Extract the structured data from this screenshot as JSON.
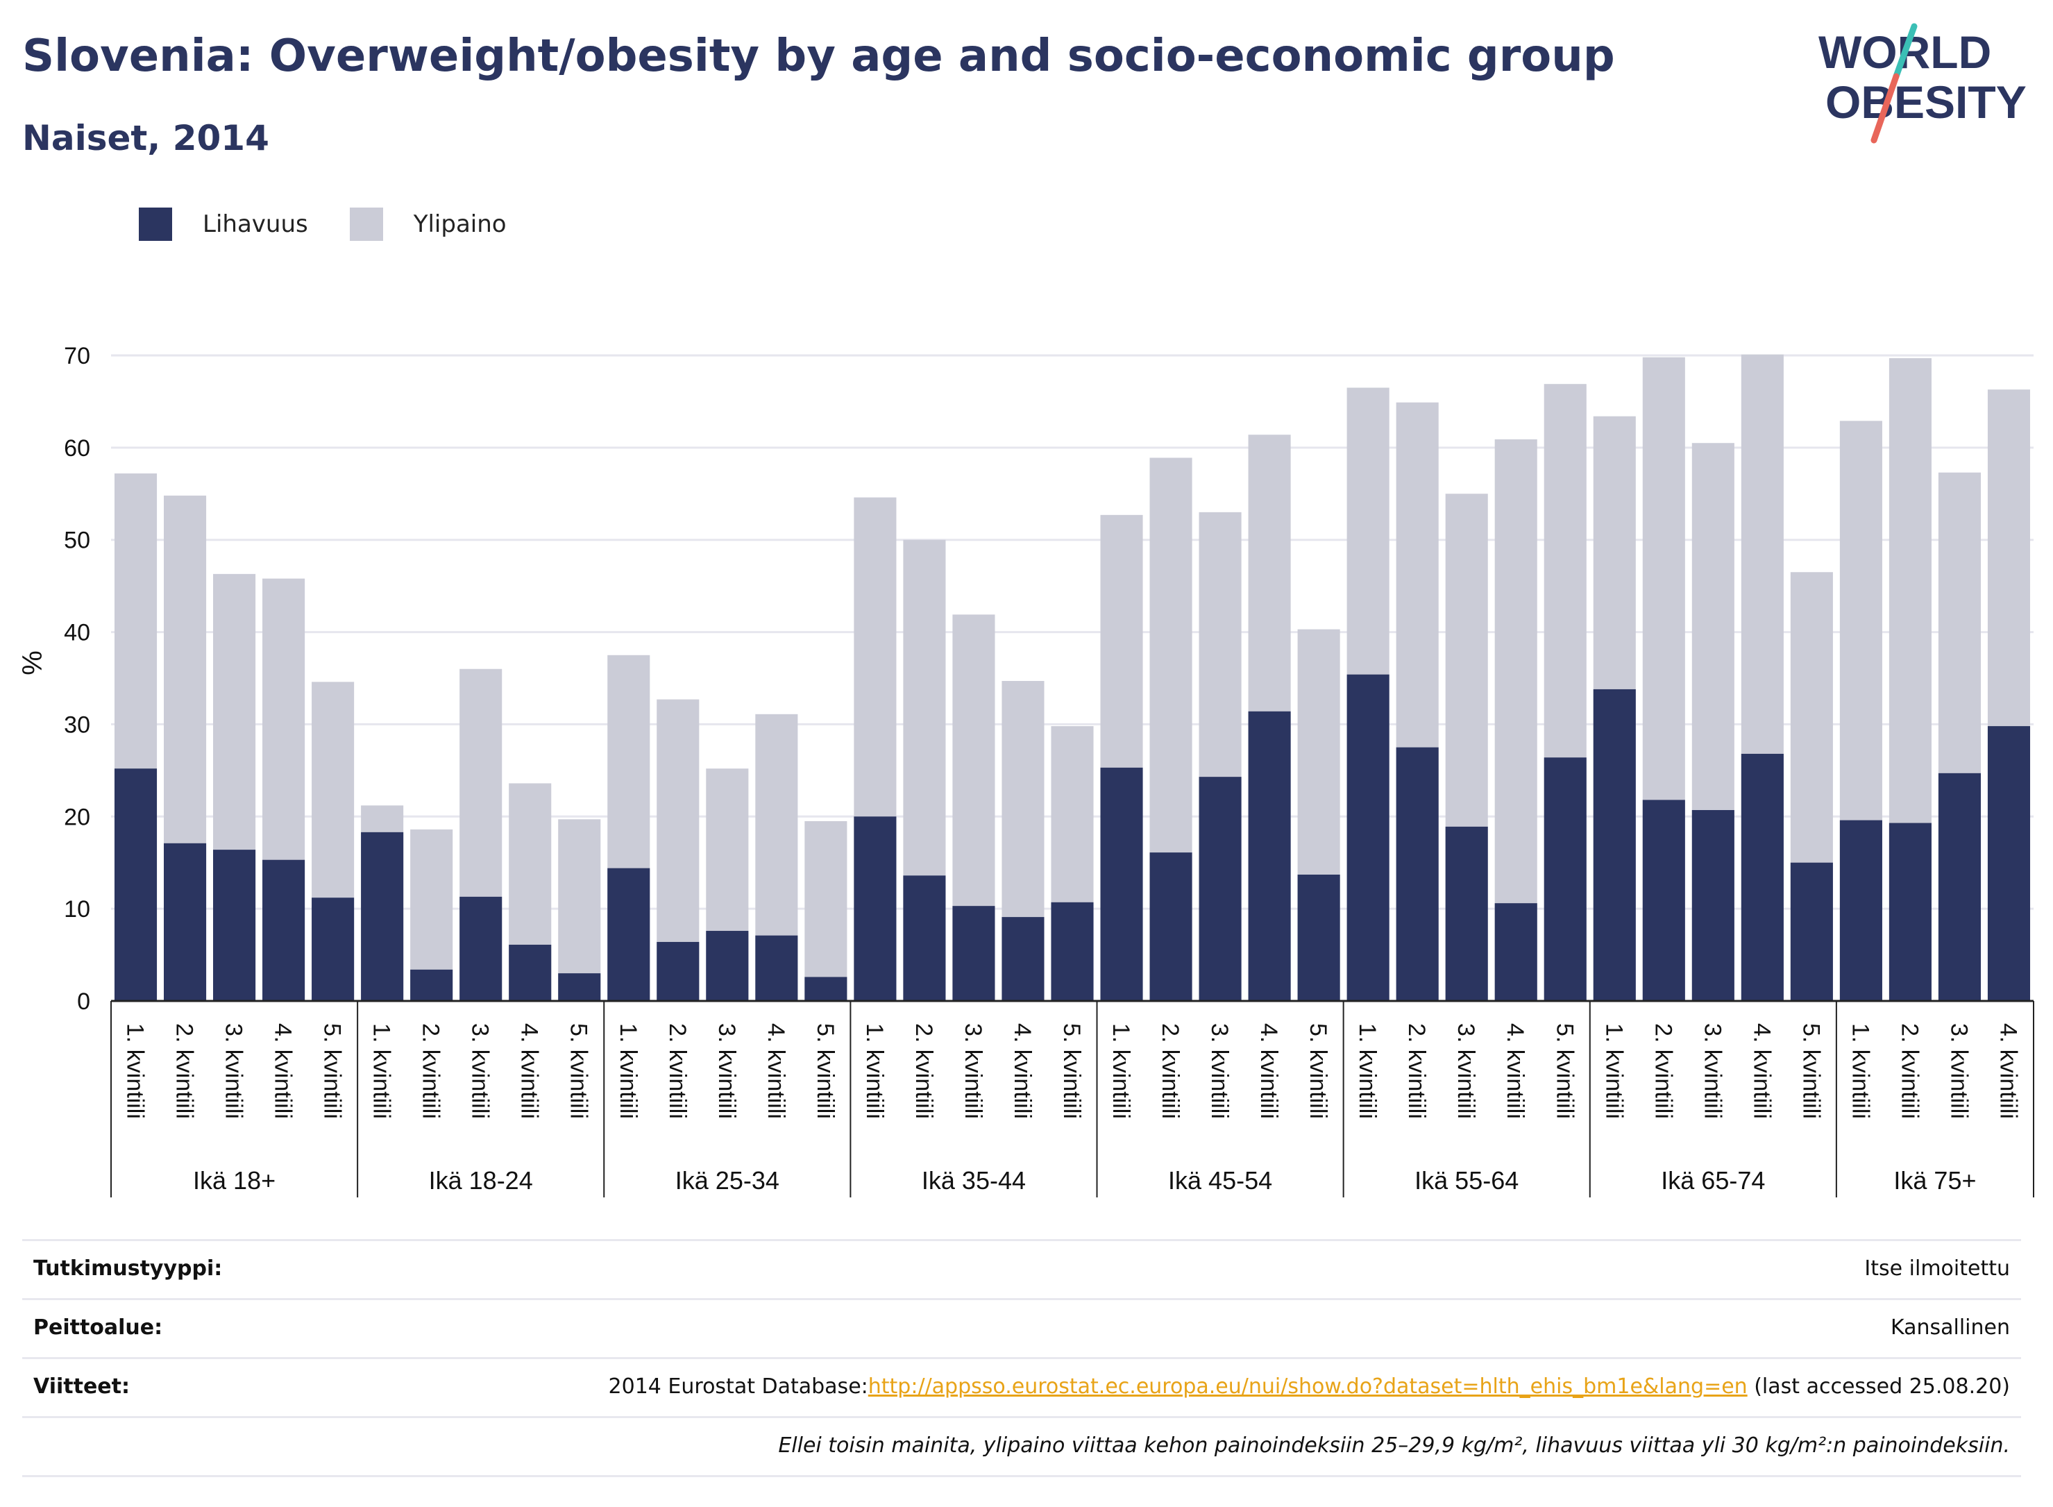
{
  "title": "Slovenia: Overweight/obesity by age and socio-economic group",
  "subtitle": "Naiset, 2014",
  "logo": {
    "line1": "WORLD",
    "line2": "OBESITY"
  },
  "legend": [
    {
      "label": "Lihavuus",
      "color": "#2b3560"
    },
    {
      "label": "Ylipaino",
      "color": "#cbccd7"
    }
  ],
  "chart_data": {
    "type": "bar",
    "stacked": false,
    "ylabel": "%",
    "ylim": [
      0,
      70
    ],
    "yticks": [
      0,
      10,
      20,
      30,
      40,
      50,
      60,
      70
    ],
    "grid": true,
    "legend_position": "top-left",
    "groups": [
      {
        "label": "Ikä 18+",
        "categories": [
          "1. kvintiili",
          "2. kvintiili",
          "3. kvintiili",
          "4. kvintiili",
          "5. kvintiili"
        ]
      },
      {
        "label": "Ikä 18-24",
        "categories": [
          "1. kvintiili",
          "2. kvintiili",
          "3. kvintiili",
          "4. kvintiili",
          "5. kvintiili"
        ]
      },
      {
        "label": "Ikä 25-34",
        "categories": [
          "1. kvintiili",
          "2. kvintiili",
          "3. kvintiili",
          "4. kvintiili",
          "5. kvintiili"
        ]
      },
      {
        "label": "Ikä 35-44",
        "categories": [
          "1. kvintiili",
          "2. kvintiili",
          "3. kvintiili",
          "4. kvintiili",
          "5. kvintiili"
        ]
      },
      {
        "label": "Ikä 45-54",
        "categories": [
          "1. kvintiili",
          "2. kvintiili",
          "3. kvintiili",
          "4. kvintiili",
          "5. kvintiili"
        ]
      },
      {
        "label": "Ikä 55-64",
        "categories": [
          "1. kvintiili",
          "2. kvintiili",
          "3. kvintiili",
          "4. kvintiili",
          "5. kvintiili"
        ]
      },
      {
        "label": "Ikä 65-74",
        "categories": [
          "1. kvintiili",
          "2. kvintiili",
          "3. kvintiili",
          "4. kvintiili",
          "5. kvintiili"
        ]
      },
      {
        "label": "Ikä 75+",
        "categories": [
          "1. kvintiili",
          "2. kvintiili",
          "3. kvintiili",
          "4. kvintiili"
        ]
      }
    ],
    "series": [
      {
        "name": "Ylipaino",
        "color": "#cbccd7",
        "values": [
          57.2,
          54.8,
          46.3,
          45.8,
          34.6,
          21.2,
          18.6,
          36.0,
          23.6,
          19.7,
          37.5,
          32.7,
          25.2,
          31.1,
          19.5,
          54.6,
          50.0,
          41.9,
          34.7,
          29.8,
          52.7,
          58.9,
          53.0,
          61.4,
          40.3,
          66.5,
          64.9,
          55.0,
          60.9,
          66.9,
          63.4,
          69.8,
          60.5,
          70.1,
          46.5,
          62.9,
          69.7,
          57.3,
          66.3
        ]
      },
      {
        "name": "Lihavuus",
        "color": "#2b3560",
        "values": [
          25.2,
          17.1,
          16.4,
          15.3,
          11.2,
          18.3,
          3.4,
          11.3,
          6.1,
          3.0,
          14.4,
          6.4,
          7.6,
          7.1,
          2.6,
          20.0,
          13.6,
          10.3,
          9.1,
          10.7,
          25.3,
          16.1,
          24.3,
          31.4,
          13.7,
          35.4,
          27.5,
          18.9,
          10.6,
          26.4,
          33.8,
          21.8,
          20.7,
          26.8,
          15.0,
          19.6,
          19.3,
          24.7,
          29.8
        ]
      }
    ]
  },
  "info": {
    "study_type_label": "Tutkimustyyppi:",
    "study_type_value": "Itse ilmoitettu",
    "coverage_label": "Peittoalue:",
    "coverage_value": "Kansallinen",
    "references_label": "Viitteet:",
    "references_prefix": "2014 Eurostat Database:",
    "references_link": "http://appsso.eurostat.ec.europa.eu/nui/show.do?dataset=hlth_ehis_bm1e&lang=en",
    "references_suffix": " (last accessed 25.08.20)",
    "note": "Ellei toisin mainita, ylipaino viittaa kehon painoindeksiin 25–29,9 kg/m², lihavuus viittaa yli 30 kg/m²:n painoindeksiin."
  }
}
